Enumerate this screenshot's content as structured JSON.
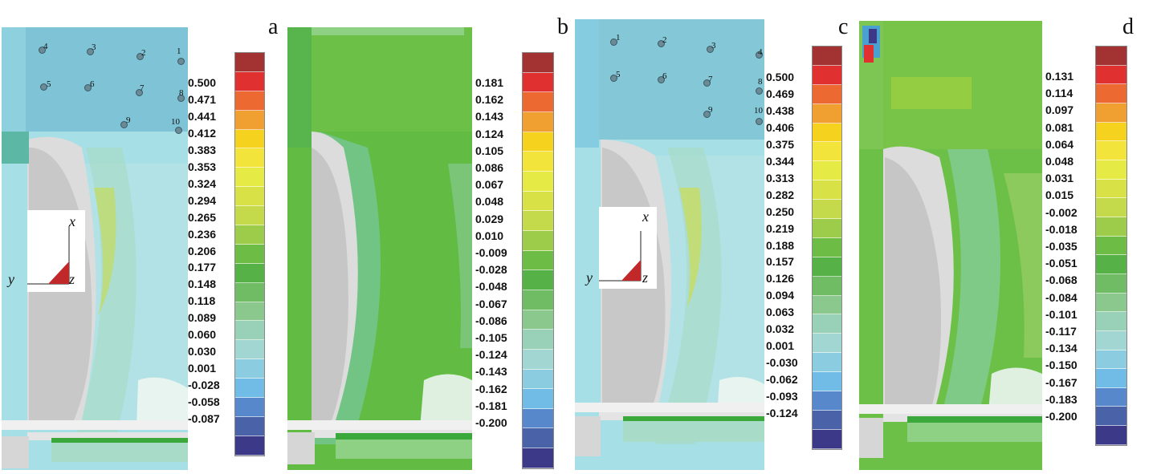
{
  "panels": [
    {
      "id": "a",
      "tag": "a",
      "scale": [
        "0.500",
        "0.471",
        "0.441",
        "0.412",
        "0.383",
        "0.353",
        "0.324",
        "0.294",
        "0.265",
        "0.236",
        "0.206",
        "0.177",
        "0.148",
        "0.118",
        "0.089",
        "0.060",
        "0.030",
        "0.001",
        "-0.028",
        "-0.058",
        "-0.087"
      ],
      "probes": [
        "1",
        "2",
        "3",
        "4",
        "5",
        "6",
        "7",
        "8",
        "9",
        "10"
      ],
      "axes": {
        "x": "x",
        "y": "y",
        "z": "z"
      }
    },
    {
      "id": "b",
      "tag": "b",
      "scale": [
        "0.181",
        "0.162",
        "0.143",
        "0.124",
        "0.105",
        "0.086",
        "0.067",
        "0.048",
        "0.029",
        "0.010",
        "-0.009",
        "-0.028",
        "-0.048",
        "-0.067",
        "-0.086",
        "-0.105",
        "-0.124",
        "-0.143",
        "-0.162",
        "-0.181",
        "-0.200"
      ]
    },
    {
      "id": "c",
      "tag": "c",
      "scale": [
        "0.500",
        "0.469",
        "0.438",
        "0.406",
        "0.375",
        "0.344",
        "0.313",
        "0.282",
        "0.250",
        "0.219",
        "0.188",
        "0.157",
        "0.126",
        "0.094",
        "0.063",
        "0.032",
        "0.001",
        "-0.030",
        "-0.062",
        "-0.093",
        "-0.124"
      ],
      "probes": [
        "1",
        "2",
        "3",
        "4",
        "5",
        "6",
        "7",
        "8",
        "9",
        "10"
      ],
      "axes": {
        "x": "x",
        "y": "y",
        "z": "z"
      }
    },
    {
      "id": "d",
      "tag": "d",
      "scale": [
        "0.131",
        "0.114",
        "0.097",
        "0.081",
        "0.064",
        "0.048",
        "0.031",
        "0.015",
        "-0.002",
        "-0.018",
        "-0.035",
        "-0.051",
        "-0.068",
        "-0.084",
        "-0.101",
        "-0.117",
        "-0.134",
        "-0.150",
        "-0.167",
        "-0.183",
        "-0.200"
      ]
    }
  ],
  "colors": {
    "colorbar": [
      "#a33232",
      "#e03030",
      "#ec6a32",
      "#f0a030",
      "#f4d21e",
      "#f2e43a",
      "#e6ea44",
      "#d8e246",
      "#c4da4a",
      "#9ccc4a",
      "#6cbc46",
      "#56b246",
      "#70bc64",
      "#8ac88e",
      "#98d0b8",
      "#a2d6d2",
      "#8ccce0",
      "#70bce6",
      "#5888cc",
      "#4a62a8",
      "#3c3a88"
    ],
    "field_teal": "#9ad8e0",
    "field_green": "#6cc048",
    "field_dark_green": "#3aa83a",
    "solid_grey": "#d8d8d8"
  }
}
